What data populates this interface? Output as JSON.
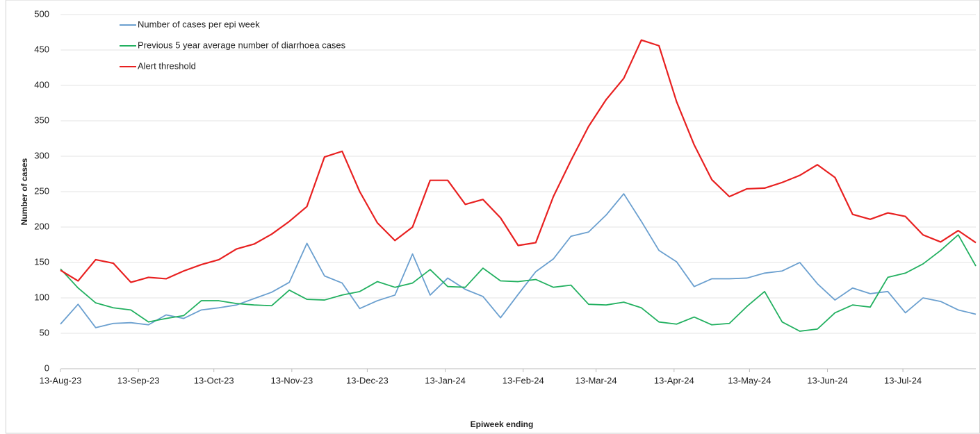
{
  "chart_data": {
    "type": "line",
    "y_label": "Number of cases",
    "x_label": "Epiweek ending",
    "x": [
      "2023-08-13",
      "2023-08-20",
      "2023-08-27",
      "2023-09-03",
      "2023-09-10",
      "2023-09-17",
      "2023-09-24",
      "2023-10-01",
      "2023-10-08",
      "2023-10-15",
      "2023-10-22",
      "2023-10-29",
      "2023-11-05",
      "2023-11-12",
      "2023-11-19",
      "2023-11-26",
      "2023-12-03",
      "2023-12-10",
      "2023-12-17",
      "2023-12-24",
      "2023-12-31",
      "2024-01-07",
      "2024-01-14",
      "2024-01-21",
      "2024-01-28",
      "2024-02-04",
      "2024-02-11",
      "2024-02-18",
      "2024-02-25",
      "2024-03-03",
      "2024-03-10",
      "2024-03-17",
      "2024-03-24",
      "2024-03-31",
      "2024-04-07",
      "2024-04-14",
      "2024-04-21",
      "2024-04-28",
      "2024-05-05",
      "2024-05-12",
      "2024-05-19",
      "2024-05-26",
      "2024-06-02",
      "2024-06-09",
      "2024-06-16",
      "2024-06-23",
      "2024-06-30",
      "2024-07-07",
      "2024-07-14",
      "2024-07-21",
      "2024-07-28",
      "2024-08-04",
      "2024-08-11"
    ],
    "xlim": [
      "2023-08-13",
      "2024-08-11"
    ],
    "xticks": [
      {
        "value": "2023-08-13",
        "label": "13-Aug-23"
      },
      {
        "value": "2023-09-13",
        "label": "13-Sep-23"
      },
      {
        "value": "2023-10-13",
        "label": "13-Oct-23"
      },
      {
        "value": "2023-11-13",
        "label": "13-Nov-23"
      },
      {
        "value": "2023-12-13",
        "label": "13-Dec-23"
      },
      {
        "value": "2024-01-13",
        "label": "13-Jan-24"
      },
      {
        "value": "2024-02-13",
        "label": "13-Feb-24"
      },
      {
        "value": "2024-03-13",
        "label": "13-Mar-24"
      },
      {
        "value": "2024-04-13",
        "label": "13-Apr-24"
      },
      {
        "value": "2024-05-13",
        "label": "13-May-24"
      },
      {
        "value": "2024-06-13",
        "label": "13-Jun-24"
      },
      {
        "value": "2024-07-13",
        "label": "13-Jul-24"
      }
    ],
    "ylim": [
      0,
      500
    ],
    "yticks": [
      0,
      50,
      100,
      150,
      200,
      250,
      300,
      350,
      400,
      450,
      500
    ],
    "grid": true,
    "legend": "upper left",
    "series": [
      {
        "name": "Number of cases per epi week",
        "color": "#6a9fcf",
        "values": [
          63,
          91,
          58,
          64,
          65,
          62,
          76,
          71,
          83,
          86,
          90,
          99,
          108,
          122,
          177,
          131,
          121,
          85,
          96,
          104,
          162,
          104,
          128,
          112,
          102,
          72,
          105,
          137,
          155,
          187,
          193,
          217,
          247,
          208,
          167,
          151,
          116,
          127,
          127,
          128,
          135,
          138,
          150,
          120,
          97,
          114,
          106,
          109,
          79,
          100,
          95,
          83,
          77
        ]
      },
      {
        "name": "Previous 5 year average number of diarrhoea cases",
        "color": "#22b060",
        "values": [
          141,
          114,
          93,
          86,
          83,
          66,
          71,
          75,
          96,
          96,
          92,
          90,
          89,
          111,
          98,
          97,
          104,
          109,
          123,
          115,
          121,
          140,
          116,
          115,
          142,
          124,
          123,
          126,
          115,
          118,
          91,
          90,
          94,
          86,
          66,
          63,
          73,
          62,
          64,
          88,
          109,
          66,
          53,
          56,
          79,
          90,
          87,
          129,
          135,
          148,
          167,
          189,
          145
        ]
      },
      {
        "name": "Alert threshold",
        "color": "#e82020",
        "values": [
          139,
          124,
          154,
          149,
          122,
          129,
          127,
          138,
          147,
          154,
          169,
          176,
          190,
          208,
          229,
          299,
          307,
          250,
          206,
          181,
          200,
          266,
          266,
          232,
          239,
          213,
          174,
          178,
          243,
          294,
          342,
          380,
          410,
          464,
          456,
          377,
          316,
          267,
          243,
          254,
          255,
          263,
          273,
          288,
          270,
          218,
          211,
          220,
          215,
          189,
          179,
          195,
          178
        ]
      }
    ]
  }
}
